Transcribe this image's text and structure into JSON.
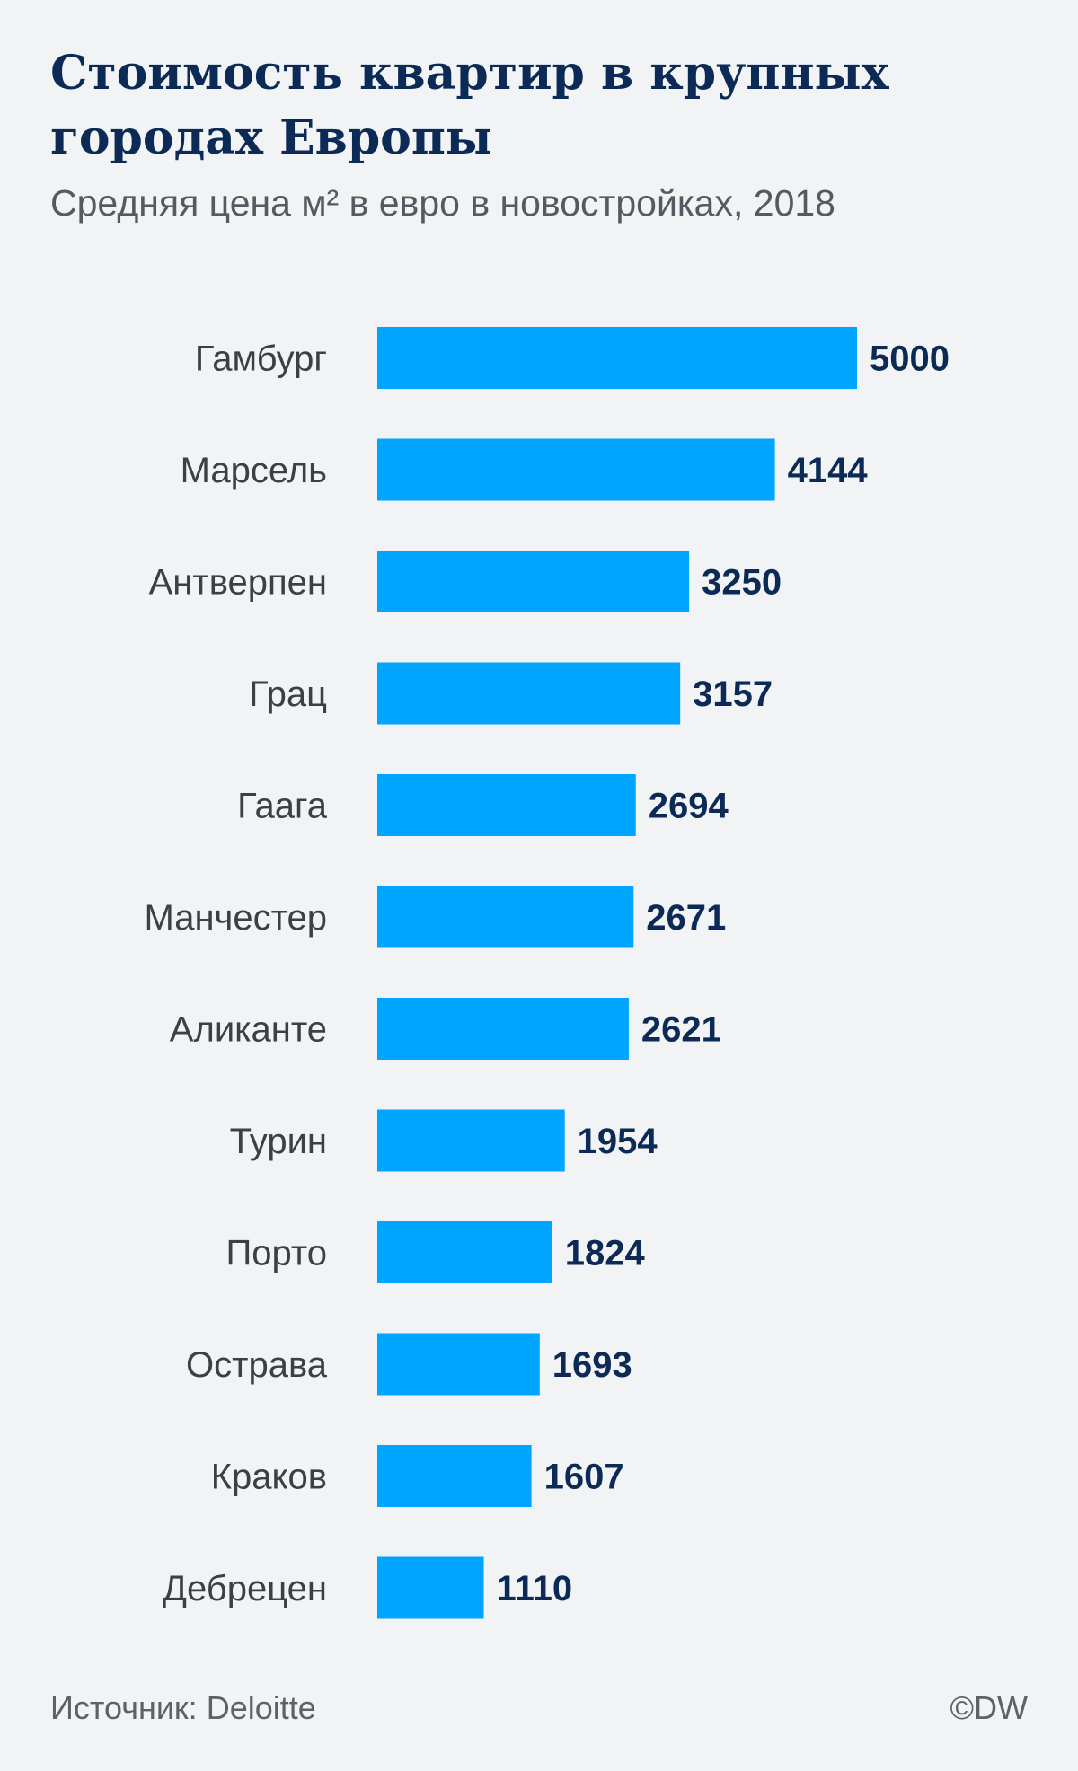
{
  "header": {
    "title": "Стоимость квартир в крупных городах Европы",
    "subtitle": "Средняя цена м² в евро в новостройках, 2018"
  },
  "footer": {
    "source": "Источник: Deloitte",
    "credit": "©DW"
  },
  "colors": {
    "bar": "#00a5ff",
    "value_text": "#0b2a55",
    "category_text": "#3b3f46",
    "background": "#f2f3f5"
  },
  "chart_data": {
    "type": "bar",
    "orientation": "horizontal",
    "title": "Стоимость квартир в крупных городах Европы",
    "subtitle": "Средняя цена м² в евро в новостройках, 2018",
    "categories": [
      "Гамбург",
      "Марсель",
      "Антверпен",
      "Грац",
      "Гаага",
      "Манчестер",
      "Аликанте",
      "Турин",
      "Порто",
      "Острава",
      "Краков",
      "Дебрецен"
    ],
    "values": [
      5000,
      4144,
      3250,
      3157,
      2694,
      2671,
      2621,
      1954,
      1824,
      1693,
      1607,
      1110
    ],
    "data_labels": [
      "5000",
      "4144",
      "3250",
      "3157",
      "2694",
      "2671",
      "2621",
      "1954",
      "1824",
      "1693",
      "1607",
      "1110"
    ],
    "xlim": [
      0,
      5000
    ],
    "grid": false,
    "legend": "none"
  }
}
